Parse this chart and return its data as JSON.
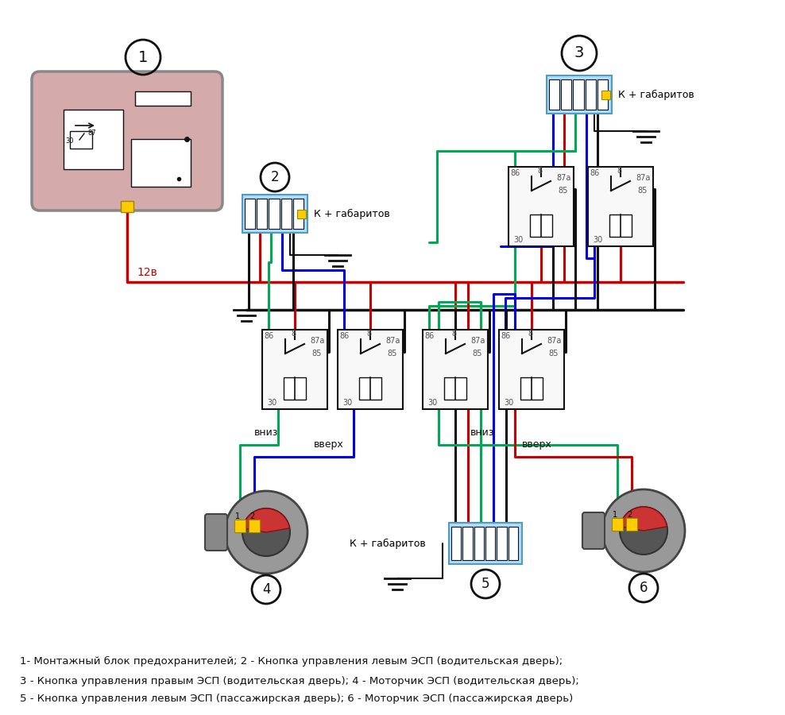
{
  "bg": "#ffffff",
  "RED": "#cc0000",
  "BLUE": "#0000ee",
  "GREEN": "#00aa55",
  "BLACK": "#111111",
  "CYAN_FILL": "#aaddff",
  "YELLOW": "#ffcc00",
  "FUSE_FILL": "#d4aaaa",
  "legend1": "1- Монтажный блок предохранителей; 2 - Кнопка управления левым ЭСП (водительская дверь);",
  "legend2": "3 - Кнопка управления правым ЭСП (водительская дверь); 4 - Моторчик ЭСП (водительская дверь);",
  "legend3": "5 - Кнопка управления левым ЭСП (пассажирская дверь); 6 - Моторчик ЭСП (пассажирская дверь)"
}
